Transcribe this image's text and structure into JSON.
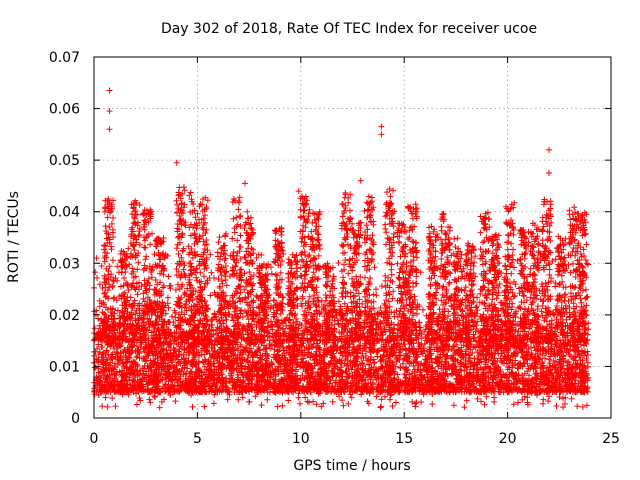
{
  "chart_data": {
    "type": "scatter",
    "title": "Day 302 of 2018, Rate Of TEC Index for receiver ucoe",
    "xlabel": "GPS time / hours",
    "ylabel": "ROTI / TECUs",
    "xlim": [
      0,
      25
    ],
    "ylim": [
      0,
      0.07
    ],
    "x_ticks": [
      0,
      5,
      10,
      15,
      20,
      25
    ],
    "y_ticks": [
      0,
      0.01,
      0.02,
      0.03,
      0.04,
      0.05,
      0.06,
      0.07
    ],
    "x_tick_labels": [
      "0",
      "5",
      "10",
      "15",
      "20",
      "25"
    ],
    "y_tick_labels": [
      "0",
      "0.01",
      "0.02",
      "0.03",
      "0.04",
      "0.05",
      "0.06",
      "0.07"
    ],
    "grid": true,
    "marker": "+",
    "color": "#ff0000",
    "data_range_x": [
      0,
      23.9
    ],
    "typical_band_y": [
      0.005,
      0.02
    ],
    "notable_points": [
      {
        "x": 0.75,
        "y": 0.0635
      },
      {
        "x": 0.75,
        "y": 0.0595
      },
      {
        "x": 0.75,
        "y": 0.056
      },
      {
        "x": 4.0,
        "y": 0.0495
      },
      {
        "x": 13.9,
        "y": 0.0565
      },
      {
        "x": 13.9,
        "y": 0.055
      },
      {
        "x": 22.0,
        "y": 0.052
      },
      {
        "x": 22.0,
        "y": 0.0475
      },
      {
        "x": 7.3,
        "y": 0.0455
      },
      {
        "x": 9.9,
        "y": 0.044
      },
      {
        "x": 12.9,
        "y": 0.046
      },
      {
        "x": 8.1,
        "y": 0.0025
      },
      {
        "x": 20.5,
        "y": 0.003
      },
      {
        "x": 14.6,
        "y": 0.003
      }
    ],
    "peaks": [
      {
        "x": 0.7,
        "y": 0.043
      },
      {
        "x": 1.5,
        "y": 0.033
      },
      {
        "x": 2.0,
        "y": 0.043
      },
      {
        "x": 2.6,
        "y": 0.041
      },
      {
        "x": 3.2,
        "y": 0.035
      },
      {
        "x": 4.2,
        "y": 0.045
      },
      {
        "x": 4.8,
        "y": 0.044
      },
      {
        "x": 5.3,
        "y": 0.043
      },
      {
        "x": 6.2,
        "y": 0.036
      },
      {
        "x": 6.9,
        "y": 0.043
      },
      {
        "x": 7.5,
        "y": 0.04
      },
      {
        "x": 8.2,
        "y": 0.03
      },
      {
        "x": 8.9,
        "y": 0.037
      },
      {
        "x": 9.6,
        "y": 0.032
      },
      {
        "x": 10.2,
        "y": 0.043
      },
      {
        "x": 10.7,
        "y": 0.04
      },
      {
        "x": 11.4,
        "y": 0.03
      },
      {
        "x": 12.2,
        "y": 0.044
      },
      {
        "x": 12.7,
        "y": 0.038
      },
      {
        "x": 13.3,
        "y": 0.043
      },
      {
        "x": 14.3,
        "y": 0.045
      },
      {
        "x": 14.9,
        "y": 0.038
      },
      {
        "x": 15.4,
        "y": 0.043
      },
      {
        "x": 16.4,
        "y": 0.038
      },
      {
        "x": 17.0,
        "y": 0.04
      },
      {
        "x": 17.6,
        "y": 0.035
      },
      {
        "x": 18.2,
        "y": 0.034
      },
      {
        "x": 18.9,
        "y": 0.04
      },
      {
        "x": 19.4,
        "y": 0.036
      },
      {
        "x": 20.1,
        "y": 0.042
      },
      {
        "x": 20.8,
        "y": 0.037
      },
      {
        "x": 21.3,
        "y": 0.038
      },
      {
        "x": 21.9,
        "y": 0.043
      },
      {
        "x": 22.6,
        "y": 0.036
      },
      {
        "x": 23.2,
        "y": 0.041
      },
      {
        "x": 23.6,
        "y": 0.04
      }
    ]
  }
}
